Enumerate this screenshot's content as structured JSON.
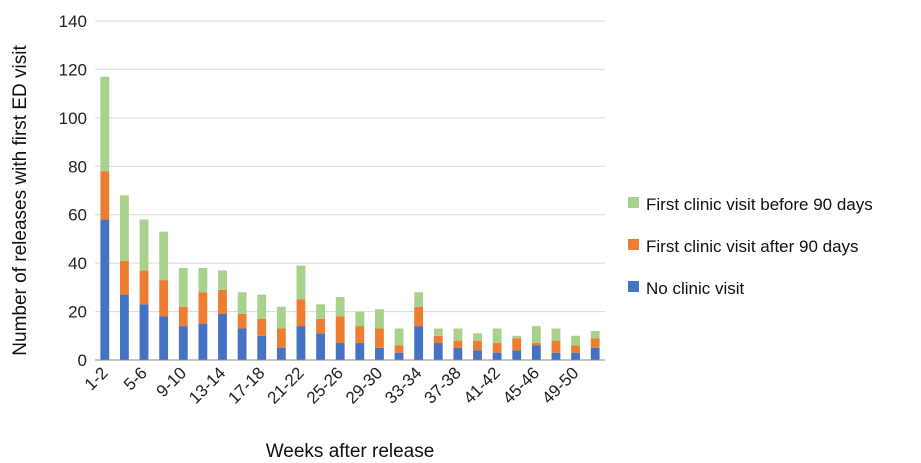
{
  "chart_data": {
    "type": "bar",
    "stacked": true,
    "xlabel": "Weeks after release",
    "ylabel": "Number of releases with first ED visit",
    "ylim": [
      0,
      140
    ],
    "yticks": [
      0,
      20,
      40,
      60,
      80,
      100,
      120,
      140
    ],
    "grid": "horizontal",
    "legend_position": "right",
    "categories": [
      "1-2",
      "3-4",
      "5-6",
      "7-8",
      "9-10",
      "11-12",
      "13-14",
      "15-16",
      "17-18",
      "19-20",
      "21-22",
      "23-24",
      "25-26",
      "27-28",
      "29-30",
      "31-32",
      "33-34",
      "35-36",
      "37-38",
      "39-40",
      "41-42",
      "43-44",
      "45-46",
      "47-48",
      "49-50",
      "51-52"
    ],
    "shown_tick_labels": [
      "1-2",
      "5-6",
      "9-10",
      "13-14",
      "17-18",
      "21-22",
      "25-26",
      "29-30",
      "33-34",
      "37-38",
      "41-42",
      "45-46",
      "49-50"
    ],
    "series": [
      {
        "name": "No clinic visit",
        "color": "#4472C4",
        "values": [
          58,
          27,
          23,
          18,
          14,
          15,
          19,
          13,
          10,
          5,
          14,
          11,
          7,
          7,
          5,
          3,
          14,
          7,
          5,
          4,
          3,
          4,
          6,
          3,
          3,
          5
        ]
      },
      {
        "name": "First clinic visit after 90 days",
        "color": "#ED7D31",
        "values": [
          20,
          14,
          14,
          15,
          8,
          13,
          10,
          6,
          7,
          8,
          11,
          6,
          11,
          7,
          8,
          3,
          8,
          3,
          3,
          4,
          4,
          5,
          1,
          5,
          3,
          4
        ]
      },
      {
        "name": "First clinic visit before 90 days",
        "color": "#A9D18E",
        "values": [
          39,
          27,
          21,
          20,
          16,
          10,
          8,
          9,
          10,
          9,
          14,
          6,
          8,
          6,
          8,
          7,
          6,
          3,
          5,
          3,
          6,
          1,
          7,
          5,
          4,
          3
        ]
      }
    ]
  },
  "legend": {
    "items": [
      {
        "label": "First clinic visit before 90 days",
        "color": "#A9D18E"
      },
      {
        "label": "First clinic visit after 90 days",
        "color": "#ED7D31"
      },
      {
        "label": "No clinic visit",
        "color": "#4472C4"
      }
    ]
  }
}
